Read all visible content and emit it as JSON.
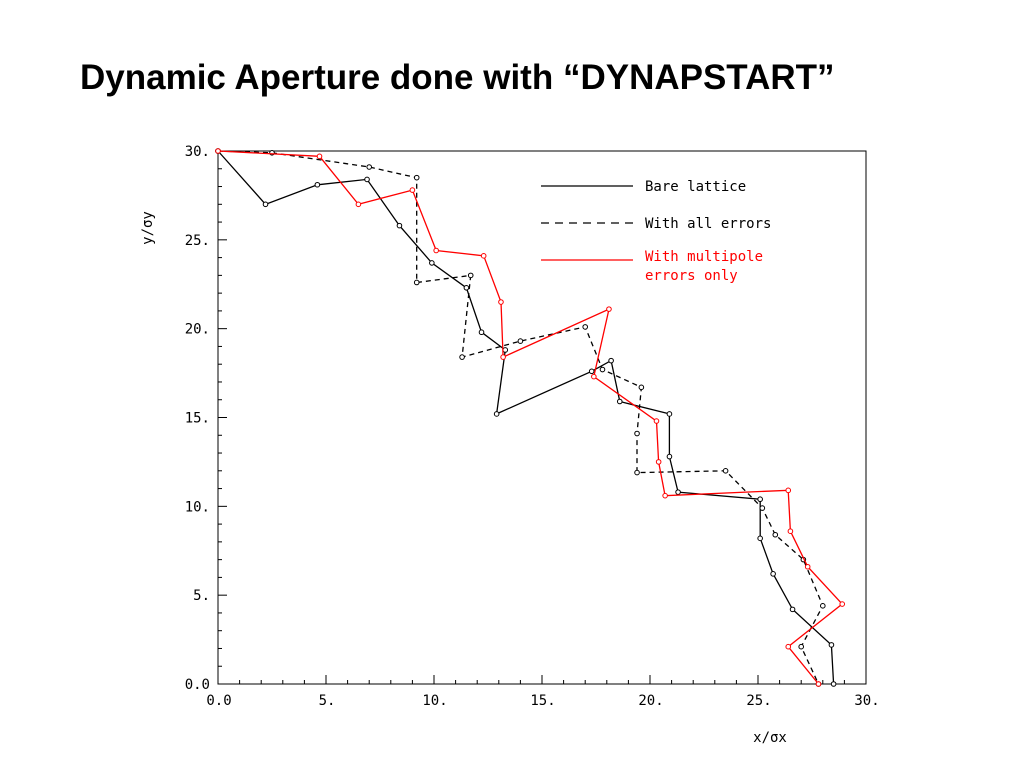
{
  "slide": {
    "title": "Dynamic Aperture done with “DYNAPSTART”"
  },
  "chart_data": {
    "type": "line",
    "title": "Dynamic Aperture done with “DYNAPSTART”",
    "xlabel": "x/σx",
    "ylabel": "y/σy",
    "xlim": [
      0,
      30
    ],
    "ylim": [
      0,
      30
    ],
    "x_ticks": [
      "0.0",
      "5.",
      "10.",
      "15.",
      "20.",
      "25.",
      "30."
    ],
    "y_ticks": [
      "0.0",
      "5.",
      "10.",
      "15.",
      "20.",
      "25.",
      "30."
    ],
    "grid": false,
    "legend_position": "top-right",
    "colors": {
      "bare": "#000000",
      "errors": "#000000",
      "multipole": "#ff0000"
    },
    "series": [
      {
        "name": "Bare lattice",
        "style": "solid",
        "color": "#000000",
        "points": [
          [
            0.0,
            30.0
          ],
          [
            2.2,
            27.0
          ],
          [
            4.6,
            28.1
          ],
          [
            6.9,
            28.4
          ],
          [
            8.4,
            25.8
          ],
          [
            9.9,
            23.7
          ],
          [
            11.5,
            22.3
          ],
          [
            12.2,
            19.8
          ],
          [
            13.3,
            18.8
          ],
          [
            12.9,
            15.2
          ],
          [
            17.3,
            17.6
          ],
          [
            18.2,
            18.2
          ],
          [
            18.6,
            15.9
          ],
          [
            20.9,
            15.2
          ],
          [
            20.9,
            12.8
          ],
          [
            21.3,
            10.8
          ],
          [
            25.1,
            10.4
          ],
          [
            25.1,
            8.2
          ],
          [
            25.7,
            6.2
          ],
          [
            26.6,
            4.2
          ],
          [
            28.4,
            2.2
          ],
          [
            28.5,
            0.0
          ]
        ]
      },
      {
        "name": "With all errors",
        "style": "dashed",
        "color": "#000000",
        "points": [
          [
            0.0,
            30.0
          ],
          [
            2.5,
            29.9
          ],
          [
            7.0,
            29.1
          ],
          [
            9.2,
            28.5
          ],
          [
            9.2,
            22.6
          ],
          [
            11.7,
            23.0
          ],
          [
            11.3,
            18.4
          ],
          [
            14.0,
            19.3
          ],
          [
            17.0,
            20.1
          ],
          [
            17.8,
            17.7
          ],
          [
            19.6,
            16.7
          ],
          [
            19.4,
            14.1
          ],
          [
            19.4,
            11.9
          ],
          [
            23.5,
            12.0
          ],
          [
            25.2,
            9.9
          ],
          [
            25.8,
            8.4
          ],
          [
            27.1,
            7.0
          ],
          [
            28.0,
            4.4
          ],
          [
            27.0,
            2.1
          ],
          [
            27.8,
            0.0
          ]
        ]
      },
      {
        "name": "With multipole errors only",
        "style": "solid",
        "color": "#ff0000",
        "points": [
          [
            0.0,
            30.0
          ],
          [
            4.7,
            29.7
          ],
          [
            6.5,
            27.0
          ],
          [
            9.0,
            27.8
          ],
          [
            10.1,
            24.4
          ],
          [
            12.3,
            24.1
          ],
          [
            13.1,
            21.5
          ],
          [
            13.2,
            18.4
          ],
          [
            18.1,
            21.1
          ],
          [
            17.4,
            17.3
          ],
          [
            20.3,
            14.8
          ],
          [
            20.4,
            12.5
          ],
          [
            20.7,
            10.6
          ],
          [
            26.4,
            10.9
          ],
          [
            26.5,
            8.6
          ],
          [
            27.3,
            6.6
          ],
          [
            28.9,
            4.5
          ],
          [
            26.4,
            2.1
          ],
          [
            27.8,
            0.0
          ]
        ]
      }
    ]
  }
}
